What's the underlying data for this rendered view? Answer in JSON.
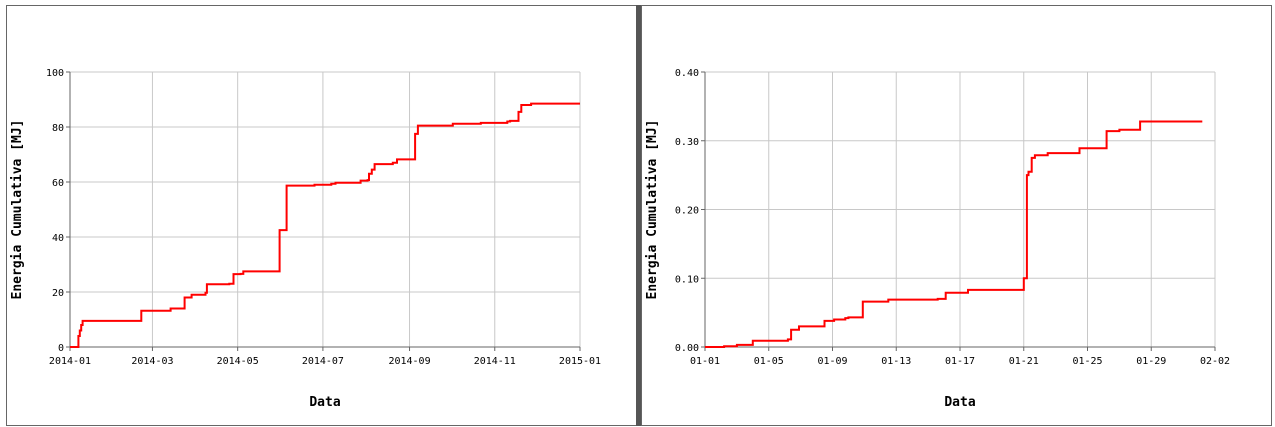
{
  "chart_data": [
    {
      "type": "line",
      "step": true,
      "xlabel": "Data",
      "ylabel": "Energia Cumulativa [MJ]",
      "x_ticks": [
        "2014-01",
        "2014-03",
        "2014-05",
        "2014-07",
        "2014-09",
        "2014-11",
        "2015-01"
      ],
      "y_ticks": [
        "0",
        "20",
        "40",
        "60",
        "80",
        "100"
      ],
      "xlim": [
        "2014-01",
        "2015-01"
      ],
      "ylim": [
        0,
        100
      ],
      "grid": true,
      "line_color": "#ff0000",
      "x": [
        "2014-01-01",
        "2014-01-07",
        "2014-01-07",
        "2014-01-08",
        "2014-01-09",
        "2014-01-10",
        "2014-02-19",
        "2014-02-21",
        "2014-03-12",
        "2014-03-14",
        "2014-03-24",
        "2014-03-29",
        "2014-04-08",
        "2014-04-09",
        "2014-04-25",
        "2014-04-28",
        "2014-05-03",
        "2014-05-05",
        "2014-05-31",
        "2014-06-05",
        "2014-06-25",
        "2014-07-07",
        "2014-07-10",
        "2014-07-28",
        "2014-08-02",
        "2014-08-03",
        "2014-08-05",
        "2014-08-07",
        "2014-08-20",
        "2014-08-23",
        "2014-09-04",
        "2014-09-05",
        "2014-09-07",
        "2014-10-02",
        "2014-10-22",
        "2014-11-10",
        "2014-11-12",
        "2014-11-18",
        "2014-11-20",
        "2014-11-27",
        "2015-01-01"
      ],
      "values": [
        0,
        0,
        4,
        6,
        8,
        9.5,
        9.5,
        13.2,
        13.2,
        14,
        18,
        19,
        19.7,
        22.8,
        23,
        26.5,
        26.6,
        27.5,
        42.5,
        58.7,
        59,
        59.4,
        59.7,
        60.5,
        60.7,
        63,
        64.5,
        66.5,
        67,
        68.2,
        68.2,
        77.5,
        80.5,
        81.2,
        81.5,
        82,
        82.2,
        85.5,
        88,
        88.5,
        88.5
      ]
    },
    {
      "type": "line",
      "step": true,
      "xlabel": "Data",
      "ylabel": "Energia Cumulativa [MJ]",
      "x_ticks": [
        "01-01",
        "01-05",
        "01-09",
        "01-13",
        "01-17",
        "01-21",
        "01-25",
        "01-29",
        "02-02"
      ],
      "y_ticks": [
        "0.00",
        "0.10",
        "0.20",
        "0.30",
        "0.40"
      ],
      "xlim": [
        "01-01",
        "02-02"
      ],
      "ylim": [
        0,
        0.4
      ],
      "grid": true,
      "line_color": "#ff0000",
      "x": [
        0,
        1.2,
        2.0,
        3.0,
        5.2,
        5.4,
        5.9,
        7.2,
        7.5,
        8.1,
        8.8,
        9.0,
        9.9,
        11.5,
        14.6,
        15.1,
        16.5,
        18.9,
        20.0,
        20.2,
        20.3,
        20.5,
        20.7,
        21.5,
        23.5,
        25.2,
        26.0,
        27.3,
        31.2
      ],
      "values": [
        0,
        0.001,
        0.003,
        0.009,
        0.011,
        0.025,
        0.03,
        0.03,
        0.038,
        0.04,
        0.042,
        0.043,
        0.066,
        0.069,
        0.07,
        0.079,
        0.083,
        0.083,
        0.1,
        0.25,
        0.255,
        0.275,
        0.279,
        0.282,
        0.289,
        0.314,
        0.316,
        0.328,
        0.328
      ]
    }
  ]
}
